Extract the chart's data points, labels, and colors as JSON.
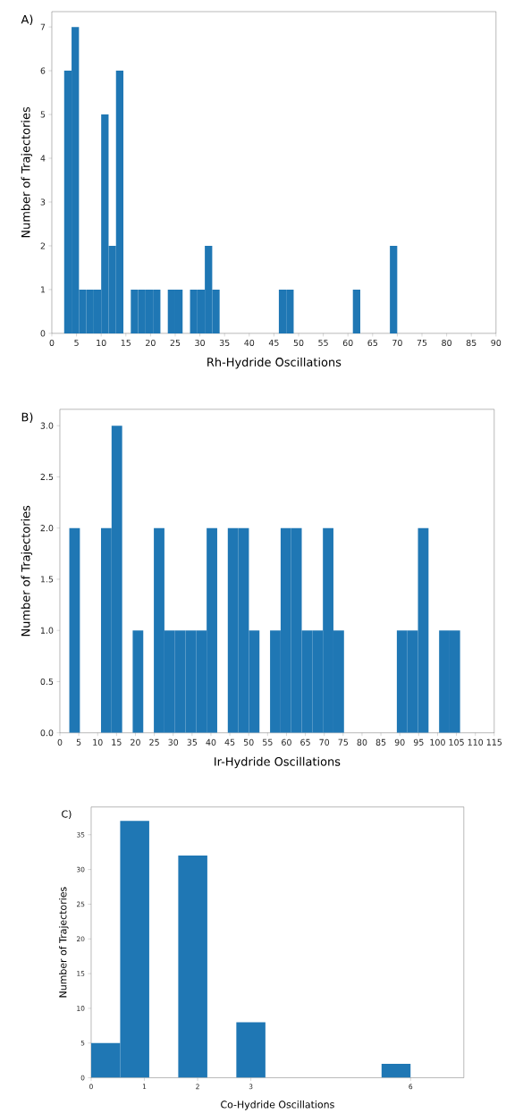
{
  "chart_data": [
    {
      "type": "histogram",
      "title": "A)",
      "xlabel": "Rh-Hydride Oscillations",
      "ylabel": "Number of Trajectories",
      "color": "#1f77b4",
      "bins": [
        2.5,
        4,
        5.5,
        7,
        8.5,
        10,
        11.5,
        13,
        14.5,
        16,
        17.5,
        19,
        20.5,
        22,
        23.5,
        25,
        26.5,
        28,
        29.5,
        31,
        32.5,
        34,
        35.5,
        37,
        38.5,
        40,
        41.5,
        43,
        44.5,
        46,
        47.5,
        49,
        50.5,
        52,
        53.5,
        55,
        56.5,
        58,
        59.5,
        61,
        62.5,
        64,
        65.5,
        67,
        68.5,
        70
      ],
      "values": [
        6,
        7,
        1,
        1,
        1,
        5,
        2,
        6,
        0,
        1,
        1,
        1,
        1,
        0,
        1,
        1,
        0,
        1,
        1,
        2,
        1,
        0,
        0,
        0,
        0,
        0,
        0,
        0,
        0,
        1,
        1,
        0,
        0,
        0,
        0,
        0,
        0,
        0,
        0,
        1,
        0,
        0,
        0,
        0,
        2
      ],
      "xlim": [
        0,
        90
      ],
      "ylim": [
        0,
        7.35
      ],
      "xticks": [
        0,
        5,
        10,
        15,
        20,
        25,
        30,
        35,
        40,
        45,
        50,
        55,
        60,
        65,
        70,
        75,
        80,
        85,
        90
      ],
      "yticks": [
        0,
        1,
        2,
        3,
        4,
        5,
        6,
        7
      ]
    },
    {
      "type": "histogram",
      "title": "B)",
      "xlabel": "Ir-Hydride Oscillations",
      "ylabel": "Number of Trajectories",
      "color": "#1f77b4",
      "bins": [
        2.5,
        5.3,
        8.09,
        10.89,
        13.69,
        16.49,
        19.28,
        22.08,
        24.88,
        27.68,
        30.47,
        33.27,
        36.07,
        38.86,
        41.66,
        44.46,
        47.26,
        50.05,
        52.85,
        55.65,
        58.45,
        61.24,
        64.04,
        66.84,
        69.64,
        72.43,
        75.23,
        78.03,
        80.82,
        83.62,
        86.42,
        89.22,
        92.01,
        94.81,
        97.61,
        100.41,
        103.2,
        106.0
      ],
      "values": [
        2,
        0,
        0,
        2,
        3,
        0,
        1,
        0,
        2,
        1,
        1,
        1,
        1,
        2,
        0,
        2,
        2,
        1,
        0,
        1,
        2,
        2,
        1,
        1,
        2,
        1,
        0,
        0,
        0,
        0,
        0,
        1,
        1,
        2,
        0,
        1,
        1
      ],
      "xlim": [
        0,
        115
      ],
      "ylim": [
        0,
        3.16
      ],
      "xticks": [
        0,
        5,
        10,
        15,
        20,
        25,
        30,
        35,
        40,
        45,
        50,
        55,
        60,
        65,
        70,
        75,
        80,
        85,
        90,
        95,
        100,
        105,
        110,
        115
      ],
      "yticks": [
        {
          "value": 0,
          "label": "0.0"
        },
        {
          "value": 0.5,
          "label": "0.5"
        },
        {
          "value": 1,
          "label": "1.0"
        },
        {
          "value": 1.5,
          "label": "1.5"
        },
        {
          "value": 2,
          "label": "2.0"
        },
        {
          "value": 2.5,
          "label": "2.5"
        },
        {
          "value": 3,
          "label": "3.0"
        }
      ]
    },
    {
      "type": "histogram",
      "title": "C)",
      "xlabel": "Co-Hydride Oscillations",
      "ylabel": "Number of Trajectories",
      "color": "#1f77b4",
      "bins": [
        0,
        0.545,
        1.091,
        1.636,
        2.182,
        2.727,
        3.273,
        3.818,
        4.364,
        4.909,
        5.455,
        6
      ],
      "values": [
        5,
        37,
        0,
        32,
        0,
        8,
        0,
        0,
        0,
        0,
        2
      ],
      "xlim": [
        0,
        7
      ],
      "ylim": [
        0,
        39
      ],
      "xticks": [
        0,
        1,
        2,
        3,
        6
      ],
      "yticks": [
        0,
        5,
        10,
        15,
        20,
        25,
        30,
        35
      ]
    }
  ]
}
